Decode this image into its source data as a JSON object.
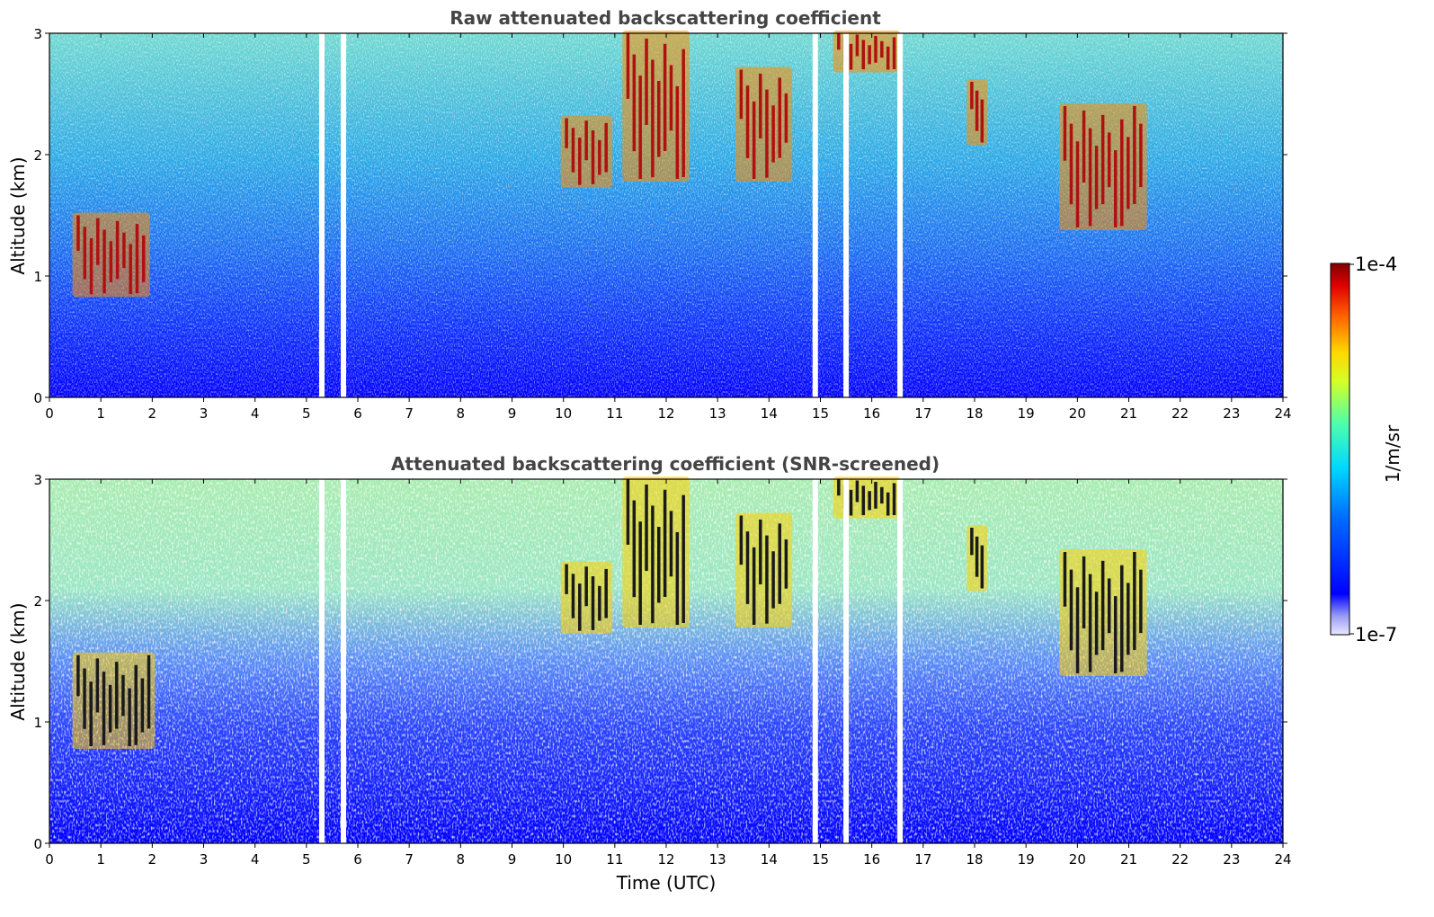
{
  "chart_data": [
    {
      "type": "heatmap",
      "title": "Raw attenuated backscattering coefficient",
      "xlabel": "",
      "ylabel": "Altitude (km)",
      "xlim": [
        0,
        24
      ],
      "ylim": [
        0,
        3
      ],
      "x_ticks": [
        "0",
        "1",
        "2",
        "3",
        "4",
        "5",
        "6",
        "7",
        "8",
        "9",
        "10",
        "11",
        "12",
        "13",
        "14",
        "15",
        "16",
        "17",
        "18",
        "19",
        "20",
        "21",
        "22",
        "23",
        "24"
      ],
      "y_ticks": [
        "0",
        "1",
        "2",
        "3"
      ],
      "cloud_features": [
        {
          "time": [
            0.5,
            1.9
          ],
          "altitude_km": [
            0.85,
            1.5
          ],
          "level": "high"
        },
        {
          "time": [
            10.0,
            10.9
          ],
          "altitude_km": [
            1.75,
            2.3
          ],
          "level": "high"
        },
        {
          "time": [
            11.2,
            12.4
          ],
          "altitude_km": [
            1.8,
            3.0
          ],
          "level": "high"
        },
        {
          "time": [
            13.4,
            14.4
          ],
          "altitude_km": [
            1.8,
            2.7
          ],
          "level": "high"
        },
        {
          "time": [
            15.3,
            16.5
          ],
          "altitude_km": [
            2.7,
            3.0
          ],
          "level": "high"
        },
        {
          "time": [
            17.9,
            18.2
          ],
          "altitude_km": [
            2.1,
            2.6
          ],
          "level": "high"
        },
        {
          "time": [
            19.7,
            21.3
          ],
          "altitude_km": [
            1.4,
            2.4
          ],
          "level": "high"
        }
      ],
      "data_gaps_time": [
        5.3,
        5.72,
        14.9,
        15.5,
        16.55
      ]
    },
    {
      "type": "heatmap",
      "title": "Attenuated backscattering coefficient (SNR-screened)",
      "xlabel": "Time (UTC)",
      "ylabel": "Altitude (km)",
      "xlim": [
        0,
        24
      ],
      "ylim": [
        0,
        3
      ],
      "x_ticks": [
        "0",
        "1",
        "2",
        "3",
        "4",
        "5",
        "6",
        "7",
        "8",
        "9",
        "10",
        "11",
        "12",
        "13",
        "14",
        "15",
        "16",
        "17",
        "18",
        "19",
        "20",
        "21",
        "22",
        "23",
        "24"
      ],
      "y_ticks": [
        "0",
        "1",
        "2",
        "3"
      ],
      "cloud_features": [
        {
          "time": [
            0.5,
            2.0
          ],
          "altitude_km": [
            0.8,
            1.55
          ],
          "level": "saturated"
        },
        {
          "time": [
            10.0,
            10.9
          ],
          "altitude_km": [
            1.75,
            2.3
          ],
          "level": "saturated"
        },
        {
          "time": [
            11.2,
            12.4
          ],
          "altitude_km": [
            1.8,
            3.0
          ],
          "level": "saturated"
        },
        {
          "time": [
            13.4,
            14.4
          ],
          "altitude_km": [
            1.8,
            2.7
          ],
          "level": "saturated"
        },
        {
          "time": [
            15.3,
            16.5
          ],
          "altitude_km": [
            2.7,
            3.0
          ],
          "level": "saturated"
        },
        {
          "time": [
            17.9,
            18.2
          ],
          "altitude_km": [
            2.1,
            2.6
          ],
          "level": "saturated"
        },
        {
          "time": [
            19.7,
            21.3
          ],
          "altitude_km": [
            1.4,
            2.4
          ],
          "level": "saturated"
        }
      ],
      "data_gaps_time": [
        5.3,
        5.72,
        14.9,
        15.5,
        16.55
      ]
    }
  ],
  "colorbar": {
    "label": "1/m/sr",
    "max_label": "1e-4",
    "min_label": "1e-7",
    "scale": "log",
    "colormap": "jet"
  }
}
